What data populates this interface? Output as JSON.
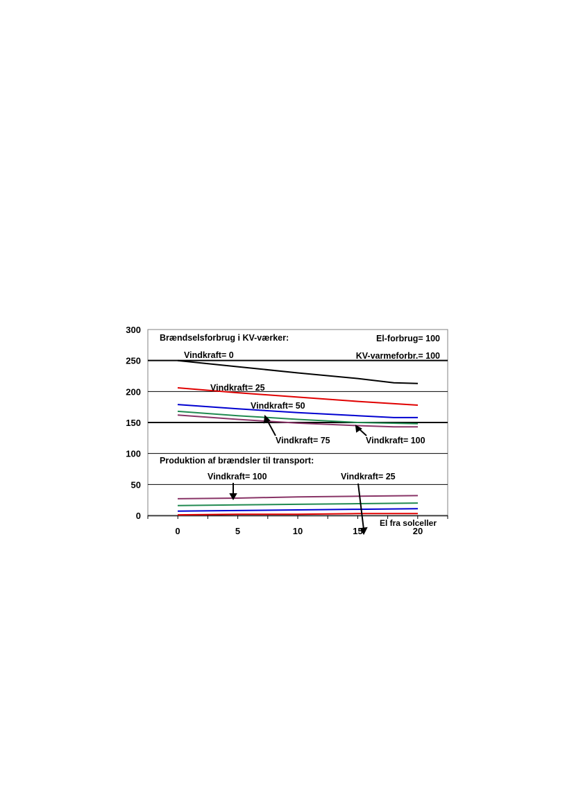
{
  "chart_data": {
    "type": "line",
    "title": "",
    "xlabel": "El fra solceller",
    "ylabel": "",
    "xlim": [
      0,
      20
    ],
    "ylim": [
      0,
      300
    ],
    "x_ticks": [
      0,
      5,
      10,
      15,
      20
    ],
    "y_ticks": [
      0,
      50,
      100,
      150,
      200,
      250,
      300
    ],
    "grid": true,
    "section_labels": {
      "upper": "Brændselsforbrug i KV-værker:",
      "lower": "Produktion af brændsler til transport:"
    },
    "parameters": {
      "el_forbrug": "El-forbrug= 100",
      "kv_varmeforbrug": "KV-varmeforbr.= 100"
    },
    "annotations": {
      "v0": "Vindkraft= 0",
      "v25": "Vindkraft= 25",
      "v50": "Vindkraft= 50",
      "v75": "Vindkraft= 75",
      "v100": "Vindkraft= 100",
      "t100": "Vindkraft= 100",
      "t25": "Vindkraft= 25"
    },
    "series": [
      {
        "group": "kv",
        "color": "#000000",
        "x": [
          0,
          5,
          10,
          15,
          18,
          20
        ],
        "y": [
          250,
          240,
          230,
          221,
          214,
          213
        ]
      },
      {
        "group": "kv",
        "color": "#e00000",
        "x": [
          0,
          5,
          10,
          15,
          20
        ],
        "y": [
          206,
          198,
          191,
          184,
          178
        ]
      },
      {
        "group": "kv",
        "color": "#0000d0",
        "x": [
          0,
          5,
          10,
          15,
          18,
          20
        ],
        "y": [
          179,
          172,
          166,
          161,
          158,
          158
        ]
      },
      {
        "group": "kv",
        "color": "#208a50",
        "x": [
          0,
          5,
          10,
          15,
          20
        ],
        "y": [
          168,
          161,
          155,
          150,
          148
        ]
      },
      {
        "group": "kv",
        "color": "#883366",
        "x": [
          0,
          5,
          10,
          15,
          18,
          20
        ],
        "y": [
          162,
          155,
          149,
          145,
          143,
          143
        ]
      },
      {
        "group": "transport",
        "color": "#883366",
        "x": [
          0,
          5,
          10,
          15,
          20
        ],
        "y": [
          27,
          28,
          30,
          31,
          32
        ]
      },
      {
        "group": "transport",
        "color": "#208a50",
        "x": [
          0,
          5,
          10,
          15,
          20
        ],
        "y": [
          16,
          17,
          18,
          19,
          20
        ]
      },
      {
        "group": "transport",
        "color": "#0000d0",
        "x": [
          0,
          5,
          10,
          15,
          20
        ],
        "y": [
          7,
          8,
          9,
          10,
          11
        ]
      },
      {
        "group": "transport",
        "color": "#e00000",
        "x": [
          0,
          5,
          10,
          15,
          20
        ],
        "y": [
          1,
          2,
          2,
          3,
          3
        ]
      }
    ]
  }
}
